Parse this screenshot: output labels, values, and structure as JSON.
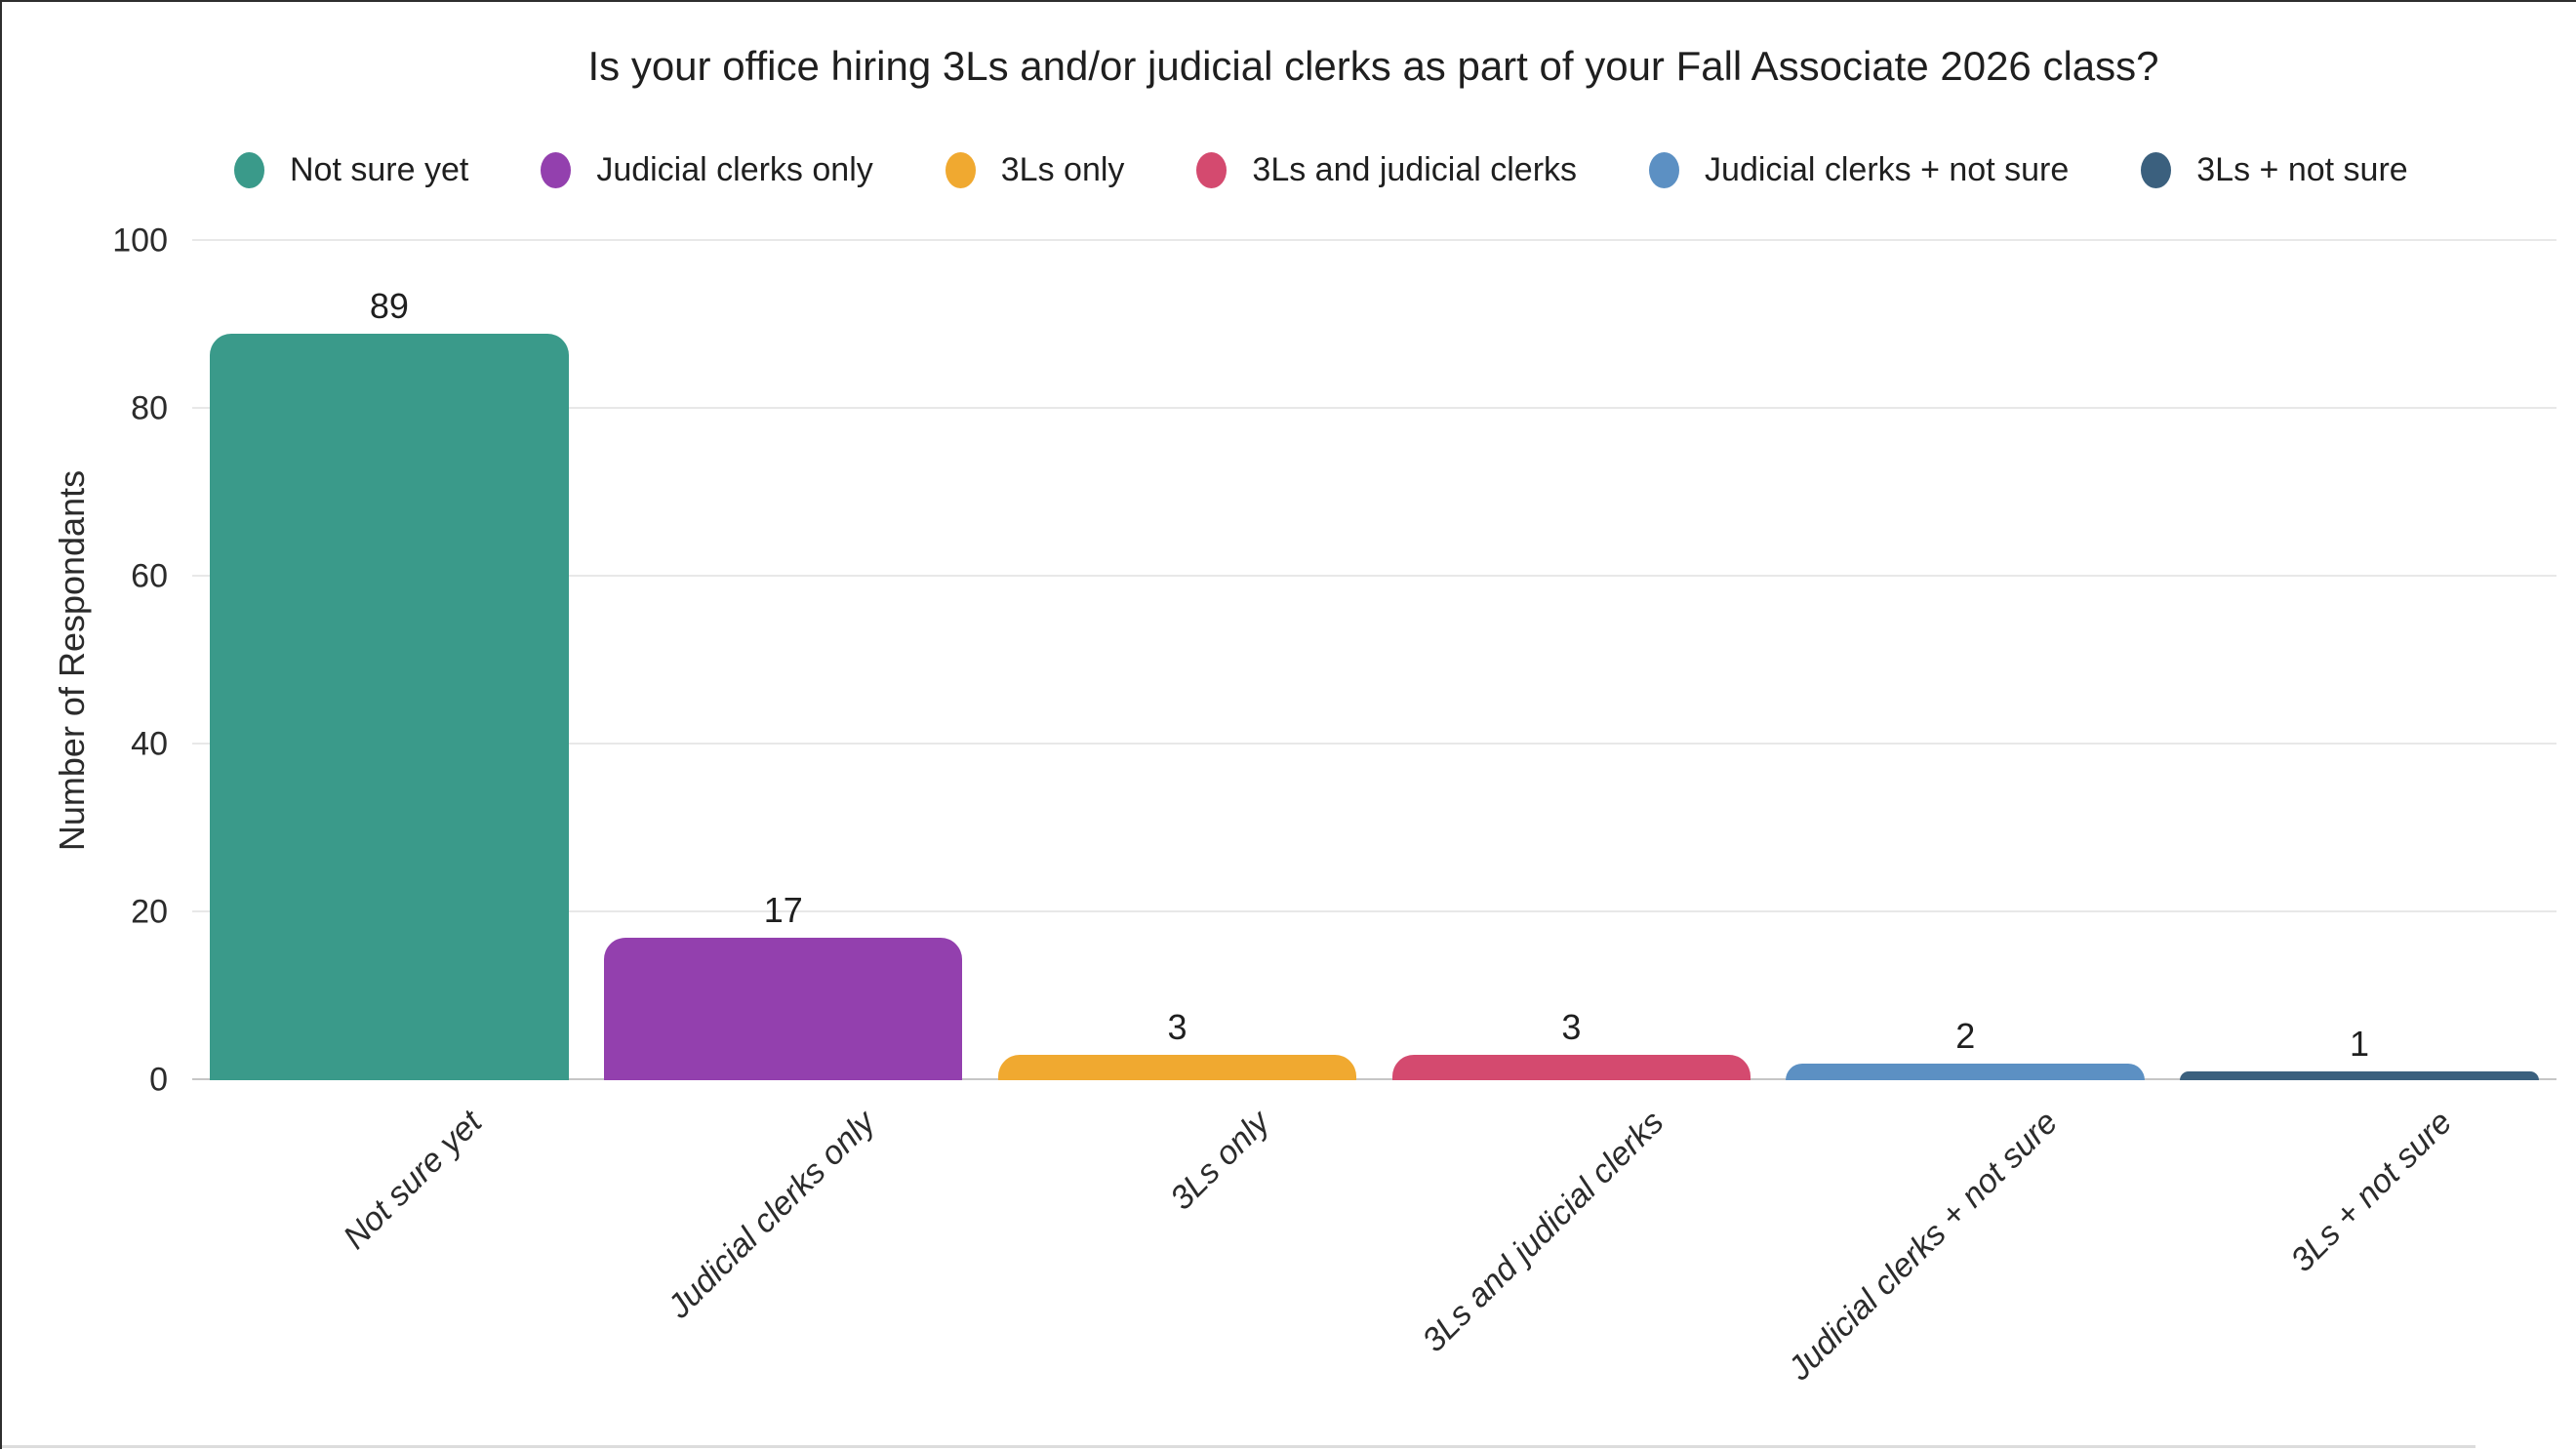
{
  "chart_data": {
    "type": "bar",
    "title": "Is your office hiring 3Ls and/or judicial clerks as part of your Fall Associate 2026 class?",
    "xlabel": "",
    "ylabel": "Number of Respondants",
    "ylim": [
      0,
      100
    ],
    "yticks": [
      0,
      20,
      40,
      60,
      80,
      100
    ],
    "grid": true,
    "legend_position": "top",
    "categories": [
      "Not sure yet",
      "Judicial clerks only",
      "3Ls only",
      "3Ls and judicial clerks",
      "Judicial clerks + not sure",
      "3Ls + not sure"
    ],
    "values": [
      89,
      17,
      3,
      3,
      2,
      1
    ],
    "series_colors": [
      "#3a9a8a",
      "#9340ae",
      "#f0a930",
      "#d44a6f",
      "#5c90c3",
      "#3b607e"
    ]
  },
  "legend": {
    "items": [
      {
        "label": "Not sure yet",
        "color": "#3a9a8a"
      },
      {
        "label": "Judicial clerks only",
        "color": "#9340ae"
      },
      {
        "label": "3Ls only",
        "color": "#f0a930"
      },
      {
        "label": "3Ls and judicial clerks",
        "color": "#d44a6f"
      },
      {
        "label": "Judicial clerks + not sure",
        "color": "#5c90c3"
      },
      {
        "label": "3Ls + not sure",
        "color": "#3b607e"
      }
    ]
  },
  "colors": {
    "title_text": "#1f1f1f",
    "axis_text": "#2b2b2b",
    "gridline": "#e8e8e8",
    "axis_line": "#c6c6c6",
    "background": "#ffffff",
    "frame_border": "#2e2e2e",
    "bottom_rule": "#dcdcdc"
  }
}
